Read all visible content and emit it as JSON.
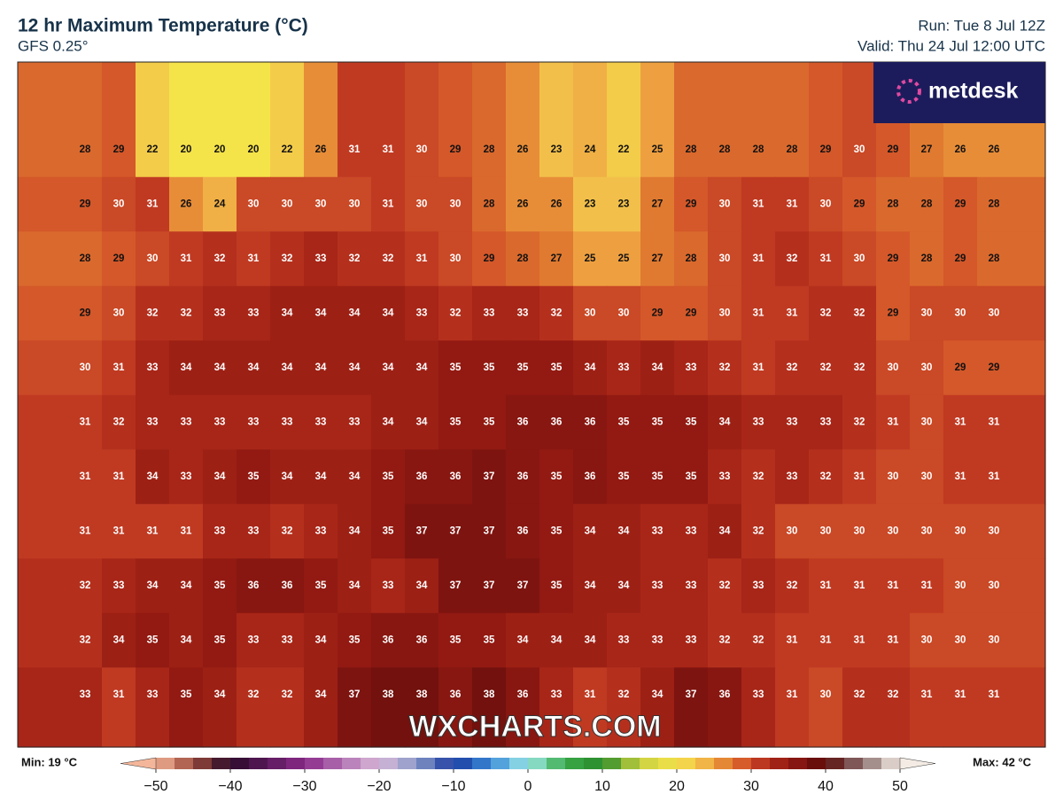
{
  "header": {
    "title": "12 hr Maximum Temperature (°C)",
    "model": "GFS 0.25°",
    "run": "Run: Tue 8 Jul 12Z",
    "valid": "Valid: Thu 24 Jul 12:00 UTC"
  },
  "logo": "metdesk",
  "watermark": "WXCHARTS.COM",
  "map": {
    "values": [
      [
        28,
        29,
        22,
        20,
        20,
        20,
        22,
        26,
        31,
        31,
        30,
        29,
        28,
        26,
        23,
        24,
        22,
        25,
        28,
        28,
        28,
        28,
        29,
        30,
        29,
        27,
        26,
        26
      ],
      [
        29,
        30,
        31,
        26,
        24,
        30,
        30,
        30,
        30,
        31,
        30,
        30,
        28,
        26,
        26,
        23,
        23,
        27,
        29,
        30,
        31,
        31,
        30,
        29,
        28,
        28,
        29,
        28
      ],
      [
        28,
        29,
        30,
        31,
        32,
        31,
        32,
        33,
        32,
        32,
        31,
        30,
        29,
        28,
        27,
        25,
        25,
        27,
        28,
        30,
        31,
        32,
        31,
        30,
        29,
        28,
        29,
        28
      ],
      [
        29,
        30,
        32,
        32,
        33,
        33,
        34,
        34,
        34,
        34,
        33,
        32,
        33,
        33,
        32,
        30,
        30,
        29,
        29,
        30,
        31,
        31,
        32,
        32,
        29,
        30,
        30,
        30
      ],
      [
        30,
        31,
        33,
        34,
        34,
        34,
        34,
        34,
        34,
        34,
        34,
        35,
        35,
        35,
        35,
        34,
        33,
        34,
        33,
        32,
        31,
        32,
        32,
        32,
        30,
        30,
        29,
        29
      ],
      [
        31,
        32,
        33,
        33,
        33,
        33,
        33,
        33,
        33,
        34,
        34,
        35,
        35,
        36,
        36,
        36,
        35,
        35,
        35,
        34,
        33,
        33,
        33,
        32,
        31,
        30,
        31,
        31
      ],
      [
        31,
        31,
        34,
        33,
        34,
        35,
        34,
        34,
        34,
        35,
        36,
        36,
        37,
        36,
        35,
        36,
        35,
        35,
        35,
        33,
        32,
        33,
        32,
        31,
        30,
        30,
        31,
        31
      ],
      [
        31,
        31,
        31,
        31,
        33,
        33,
        32,
        33,
        34,
        35,
        37,
        37,
        37,
        36,
        35,
        34,
        34,
        33,
        33,
        34,
        32,
        30,
        30,
        30,
        30,
        30,
        30,
        30
      ],
      [
        32,
        33,
        34,
        34,
        35,
        36,
        36,
        35,
        34,
        33,
        34,
        37,
        37,
        37,
        35,
        34,
        34,
        33,
        33,
        32,
        33,
        32,
        31,
        31,
        31,
        31,
        30,
        30
      ],
      [
        32,
        34,
        35,
        34,
        35,
        33,
        33,
        34,
        35,
        36,
        36,
        35,
        35,
        34,
        34,
        34,
        33,
        33,
        33,
        32,
        32,
        31,
        31,
        31,
        31,
        30,
        30,
        30
      ],
      [
        33,
        31,
        33,
        35,
        34,
        32,
        32,
        34,
        37,
        38,
        38,
        36,
        38,
        36,
        33,
        31,
        32,
        34,
        37,
        36,
        33,
        31,
        30,
        32,
        32,
        31,
        31,
        31
      ]
    ]
  },
  "colorbar": {
    "min_label": "Min: 19 °C",
    "max_label": "Max: 42 °C",
    "ticks": [
      {
        "value": -50,
        "label": "−50"
      },
      {
        "value": -40,
        "label": "−40"
      },
      {
        "value": -30,
        "label": "−30"
      },
      {
        "value": -20,
        "label": "−20"
      },
      {
        "value": -10,
        "label": "−10"
      },
      0,
      10,
      20,
      30,
      40,
      50
    ]
  }
}
